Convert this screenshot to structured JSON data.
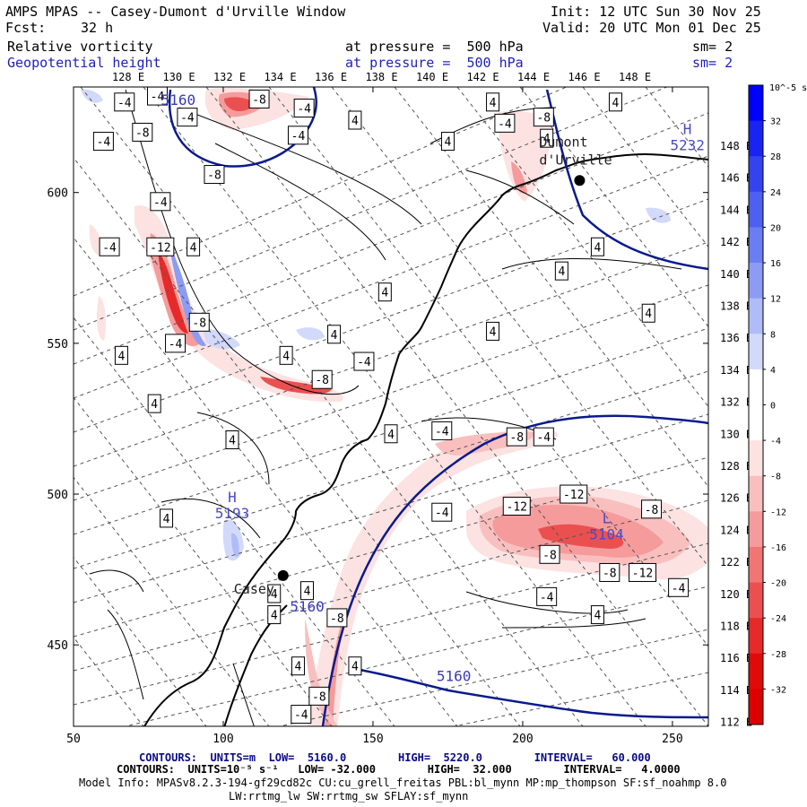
{
  "header": {
    "title": "AMPS MPAS -- Casey-Dumont d'Urville Window",
    "init": "Init: 12 UTC Sun 30 Nov 25",
    "fcst_label": "Fcst:",
    "fcst_value": "32 h",
    "valid": "Valid: 20 UTC Mon 01 Dec 25",
    "field1": "Relative vorticity",
    "field1_level": "at pressure =  500 hPa",
    "field1_sm": "sm= 2",
    "field2": "Geopotential height",
    "field2_level": "at pressure =  500 hPa",
    "field2_sm": "sm= 2"
  },
  "chart_data": {
    "type": "contour-map",
    "title": "AMPS MPAS -- Casey-Dumont d'Urville Window",
    "x_ticks": [
      50,
      100,
      150,
      200,
      250
    ],
    "y_ticks": [
      450,
      500,
      550,
      600
    ],
    "xlim": [
      50,
      262
    ],
    "ylim": [
      423,
      635
    ],
    "top_lon_labels": [
      "128 E",
      "130 E",
      "132 E",
      "134 E",
      "136 E",
      "138 E",
      "140 E",
      "142 E",
      "144 E",
      "146 E",
      "148 E"
    ],
    "right_lat_labels": [
      "148 E",
      "146 E",
      "144 E",
      "142 E",
      "140 E",
      "138 E",
      "136 E",
      "134 E",
      "132 E",
      "130 E",
      "128 E",
      "126 E",
      "124 E",
      "122 E",
      "120 E",
      "118 E",
      "116 E",
      "114 E",
      "112 E"
    ],
    "colorbar": {
      "units_label": "10^-5 s^-1",
      "tick_labels": [
        "32",
        "28",
        "24",
        "20",
        "16",
        "12",
        "8",
        "4",
        "0",
        "-4",
        "-8",
        "-12",
        "-16",
        "-20",
        "-24",
        "-28",
        "-32"
      ],
      "colors": [
        "#0000ff",
        "#1a24f0",
        "#3344ee",
        "#4d60f0",
        "#6a7ef2",
        "#8c9cf4",
        "#b0bcf8",
        "#d2d9fb",
        "#ffffff",
        "#ffffff",
        "#fde2e2",
        "#f9bfbf",
        "#f59b9b",
        "#f07676",
        "#eb5050",
        "#e62a2a",
        "#e00a0a",
        "#dd0000"
      ]
    },
    "places": [
      {
        "name": "Casey",
        "x": 120,
        "y": 473
      },
      {
        "name": "Dumont\nd'Urville",
        "x": 219,
        "y": 604
      }
    ],
    "pressure_centers": [
      {
        "type": "H",
        "value": "5193",
        "x": 103,
        "y": 495
      },
      {
        "type": "L",
        "value": "5104",
        "x": 228,
        "y": 488
      },
      {
        "type": "H",
        "value": "5232",
        "x": 255,
        "y": 617
      }
    ],
    "height_contour_labels": [
      {
        "text": "5160",
        "x": 85,
        "y": 629
      },
      {
        "text": "5160",
        "x": 128,
        "y": 461
      },
      {
        "text": "5160",
        "x": 177,
        "y": 438
      }
    ],
    "vorticity_boxes": [
      {
        "t": "-4",
        "x": 67,
        "y": 630
      },
      {
        "t": "-4",
        "x": 78,
        "y": 632
      },
      {
        "t": "-8",
        "x": 112,
        "y": 631
      },
      {
        "t": "-4",
        "x": 88,
        "y": 625
      },
      {
        "t": "-8",
        "x": 73,
        "y": 620
      },
      {
        "t": "-4",
        "x": 60,
        "y": 617
      },
      {
        "t": "-4",
        "x": 127,
        "y": 628
      },
      {
        "t": "-4",
        "x": 125,
        "y": 619
      },
      {
        "t": "4",
        "x": 144,
        "y": 624
      },
      {
        "t": "-8",
        "x": 97,
        "y": 606
      },
      {
        "t": "4",
        "x": 175,
        "y": 617
      },
      {
        "t": "-4",
        "x": 194,
        "y": 623
      },
      {
        "t": "-8",
        "x": 207,
        "y": 625
      },
      {
        "t": "4",
        "x": 208,
        "y": 618
      },
      {
        "t": "4",
        "x": 190,
        "y": 630
      },
      {
        "t": "4",
        "x": 231,
        "y": 630
      },
      {
        "t": "-4",
        "x": 79,
        "y": 597
      },
      {
        "t": "-4",
        "x": 62,
        "y": 582
      },
      {
        "t": "-12",
        "x": 79,
        "y": 582
      },
      {
        "t": "4",
        "x": 90,
        "y": 582
      },
      {
        "t": "4",
        "x": 225,
        "y": 582
      },
      {
        "t": "4",
        "x": 213,
        "y": 574
      },
      {
        "t": "4",
        "x": 154,
        "y": 567
      },
      {
        "t": "4",
        "x": 242,
        "y": 560
      },
      {
        "t": "-8",
        "x": 92,
        "y": 557
      },
      {
        "t": "4",
        "x": 190,
        "y": 554
      },
      {
        "t": "-4",
        "x": 84,
        "y": 550
      },
      {
        "t": "4",
        "x": 137,
        "y": 553
      },
      {
        "t": "4",
        "x": 66,
        "y": 546
      },
      {
        "t": "4",
        "x": 121,
        "y": 546
      },
      {
        "t": "-4",
        "x": 147,
        "y": 544
      },
      {
        "t": "-8",
        "x": 133,
        "y": 538
      },
      {
        "t": "4",
        "x": 77,
        "y": 530
      },
      {
        "t": "4",
        "x": 103,
        "y": 518
      },
      {
        "t": "4",
        "x": 156,
        "y": 520
      },
      {
        "t": "-4",
        "x": 173,
        "y": 521
      },
      {
        "t": "-8",
        "x": 198,
        "y": 519
      },
      {
        "t": "-4",
        "x": 207,
        "y": 519
      },
      {
        "t": "-12",
        "x": 217,
        "y": 500
      },
      {
        "t": "-12",
        "x": 198,
        "y": 496
      },
      {
        "t": "-8",
        "x": 243,
        "y": 495
      },
      {
        "t": "-4",
        "x": 173,
        "y": 494
      },
      {
        "t": "4",
        "x": 81,
        "y": 492
      },
      {
        "t": "-8",
        "x": 209,
        "y": 480
      },
      {
        "t": "-8",
        "x": 229,
        "y": 474
      },
      {
        "t": "-12",
        "x": 240,
        "y": 474
      },
      {
        "t": "-4",
        "x": 252,
        "y": 469
      },
      {
        "t": "-4",
        "x": 208,
        "y": 466
      },
      {
        "t": "4",
        "x": 117,
        "y": 467
      },
      {
        "t": "4",
        "x": 128,
        "y": 468
      },
      {
        "t": "4",
        "x": 225,
        "y": 460
      },
      {
        "t": "4",
        "x": 117,
        "y": 460
      },
      {
        "t": "-8",
        "x": 138,
        "y": 459
      },
      {
        "t": "4",
        "x": 144,
        "y": 443
      },
      {
        "t": "-8",
        "x": 132,
        "y": 433
      },
      {
        "t": "4",
        "x": 125,
        "y": 443
      },
      {
        "t": "-4",
        "x": 126,
        "y": 427
      }
    ]
  },
  "footer": {
    "line1": "CONTOURS:  UNITS=m  LOW=  5160.0        HIGH=  5220.0        INTERVAL=   60.000",
    "line2": "CONTOURS:  UNITS=10⁻⁵ s⁻¹   LOW= -32.000        HIGH=  32.000        INTERVAL=   4.0000",
    "line3": "Model Info: MPASv8.2.3-194-gf29cd82c CU:cu_grell_freitas PBL:bl_mynn MP:mp_thompson SF:sf_noahmp 8.0",
    "line4": "LW:rrtmg_lw SW:rrtmg_sw SFLAY:sf_mynn"
  }
}
